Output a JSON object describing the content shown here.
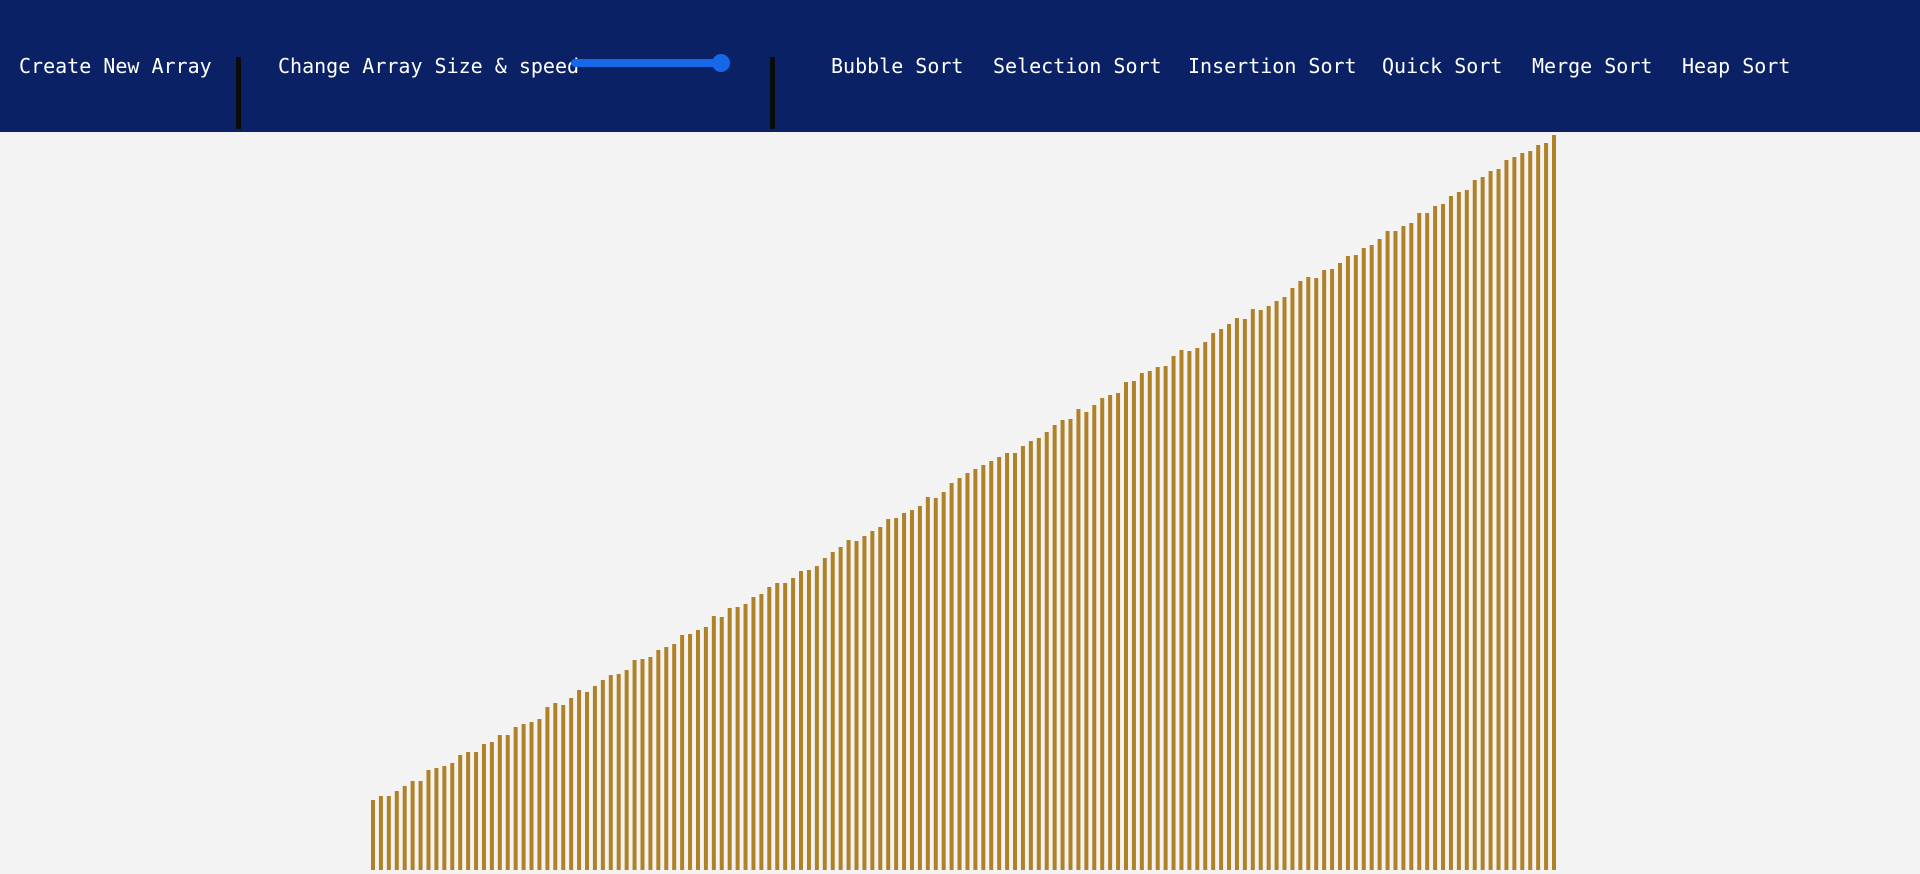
{
  "navbar": {
    "create_label": "Create New Array",
    "size_speed_label": "Change Array Size & speed",
    "slider_value_fraction": 0.95,
    "algorithms": [
      "Bubble Sort",
      "Selection Sort",
      "Insertion Sort",
      "Quick Sort",
      "Merge Sort",
      "Heap Sort"
    ]
  },
  "colors": {
    "navbar": "#0a2166",
    "background": "#f3f3f3",
    "bar": "#b08227",
    "slider": "#1668e8",
    "divider": "#0b0b0b"
  },
  "array": {
    "count": 150,
    "sorted": true,
    "min_value": 35,
    "max_value": 735
  }
}
